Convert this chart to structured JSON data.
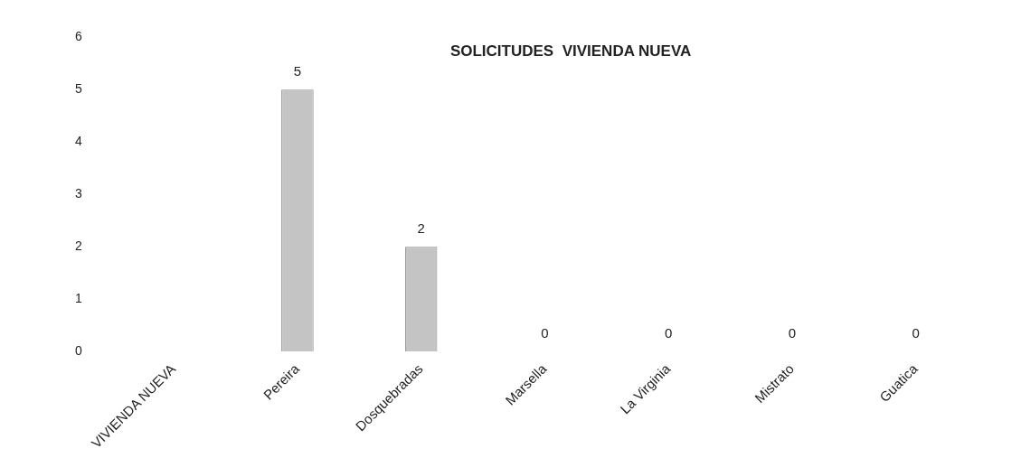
{
  "chart_data": {
    "type": "bar",
    "title": "SOLICITUDES  VIVIENDA NUEVA",
    "categories": [
      "VIVIENDA NUEVA",
      "Pereira",
      "Dosquebradas",
      "Marsella",
      "La Virginia",
      "Mistrato",
      "Guatica"
    ],
    "values": [
      null,
      5,
      2,
      0,
      0,
      0,
      0
    ],
    "value_labels": [
      null,
      "5",
      "2",
      "0",
      "0",
      "0",
      "0"
    ],
    "color": "#c4c4c4",
    "ylim": [
      0,
      6
    ],
    "yticks": [
      0,
      1,
      2,
      3,
      4,
      5,
      6
    ],
    "grid": false,
    "legend": false
  }
}
